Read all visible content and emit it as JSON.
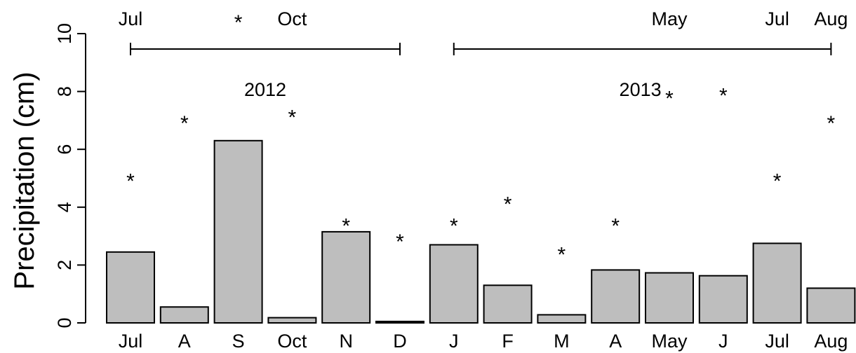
{
  "chart_data": {
    "type": "bar",
    "ylabel": "Precipitation (cm)",
    "ylim": [
      0,
      10
    ],
    "yticks": [
      "0",
      "2",
      "4",
      "6",
      "8",
      "10"
    ],
    "categories": [
      "Jul",
      "A",
      "S",
      "Oct",
      "N",
      "D",
      "J",
      "F",
      "M",
      "A",
      "May",
      "J",
      "Jul",
      "Aug"
    ],
    "values": [
      2.45,
      0.55,
      6.3,
      0.18,
      3.15,
      0.05,
      2.7,
      1.3,
      0.28,
      1.83,
      1.73,
      1.63,
      2.75,
      1.2
    ],
    "star_values": [
      5.1,
      7.1,
      null,
      7.3,
      3.55,
      3.0,
      3.55,
      4.3,
      2.55,
      3.55,
      7.95,
      8.05,
      5.1,
      7.1
    ],
    "year_labels": [
      {
        "label": "2012",
        "start": 0,
        "end": 5
      },
      {
        "label": "2013",
        "start": 6,
        "end": 13
      }
    ],
    "top_labels": [
      {
        "text": "Jul",
        "index": 0
      },
      {
        "text": "*",
        "index": 2
      },
      {
        "text": "Oct",
        "index": 3
      },
      {
        "text": "May",
        "index": 10
      },
      {
        "text": "Jul",
        "index": 12
      },
      {
        "text": "Aug",
        "index": 13
      }
    ],
    "bar_color": "#bebebe",
    "grid": false
  }
}
